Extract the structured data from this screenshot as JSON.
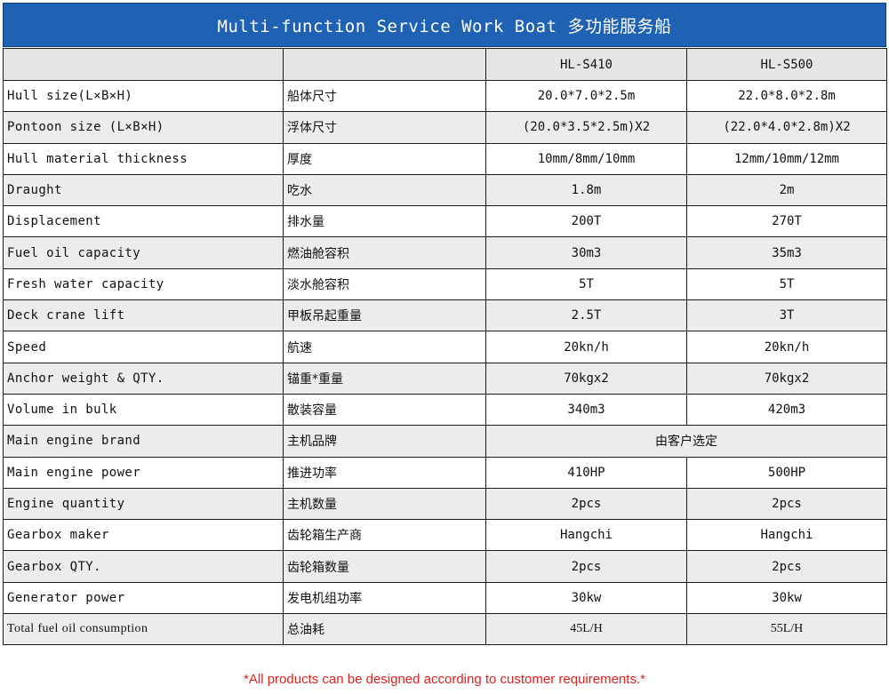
{
  "title": "Multi-function Service Work Boat 多功能服务船",
  "models": [
    "HL-S410",
    "HL-S500"
  ],
  "rows": [
    {
      "en": "Hull size(L×B×H)",
      "cn": "船体尺寸",
      "v1": "20.0*7.0*2.5m",
      "v2": "22.0*8.0*2.8m"
    },
    {
      "en": "Pontoon size (L×B×H)",
      "cn": "浮体尺寸",
      "v1": "(20.0*3.5*2.5m)X2",
      "v2": "(22.0*4.0*2.8m)X2"
    },
    {
      "en": "Hull material thickness",
      "cn": "厚度",
      "v1": "10mm/8mm/10mm",
      "v2": "12mm/10mm/12mm"
    },
    {
      "en": "Draught",
      "cn": "吃水",
      "v1": "1.8m",
      "v2": "2m"
    },
    {
      "en": "Displacement",
      "cn": "排水量",
      "v1": "200T",
      "v2": "270T"
    },
    {
      "en": "Fuel oil capacity",
      "cn": "燃油舱容积",
      "v1": "30m3",
      "v2": "35m3"
    },
    {
      "en": "Fresh water capacity",
      "cn": "淡水舱容积",
      "v1": "5T",
      "v2": "5T"
    },
    {
      "en": "Deck crane lift",
      "cn": "甲板吊起重量",
      "v1": "2.5T",
      "v2": "3T"
    },
    {
      "en": "Speed",
      "cn": "航速",
      "v1": "20kn/h",
      "v2": "20kn/h"
    },
    {
      "en": "Anchor weight & QTY.",
      "cn": "锚重*重量",
      "v1": "70kgx2",
      "v2": "70kgx2"
    },
    {
      "en": "Volume in bulk",
      "cn": "散装容量",
      "v1": "340m3",
      "v2": "420m3"
    },
    {
      "en": "Main engine brand",
      "cn": "主机品牌",
      "merged": "由客户选定"
    },
    {
      "en": "Main engine power",
      "cn": "推进功率",
      "v1": "410HP",
      "v2": "500HP"
    },
    {
      "en": "Engine quantity",
      "cn": "主机数量",
      "v1": "2pcs",
      "v2": "2pcs"
    },
    {
      "en": "Gearbox maker",
      "cn": "齿轮箱生产商",
      "v1": "Hangchi",
      "v2": "Hangchi"
    },
    {
      "en": "Gearbox QTY.",
      "cn": "齿轮箱数量",
      "v1": "2pcs",
      "v2": "2pcs"
    },
    {
      "en": "Generator power",
      "cn": "发电机组功率",
      "v1": "30kw",
      "v2": "30kw"
    },
    {
      "en": "Total fuel oil consumption",
      "cn": "总油耗",
      "v1": "45L/H",
      "v2": "55L/H"
    }
  ],
  "footnote": "*All products can be designed according to customer requirements.*",
  "colors": {
    "header_bg": "#1f62b3",
    "model_text": "#1f62b3",
    "footnote": "#e0201a"
  }
}
